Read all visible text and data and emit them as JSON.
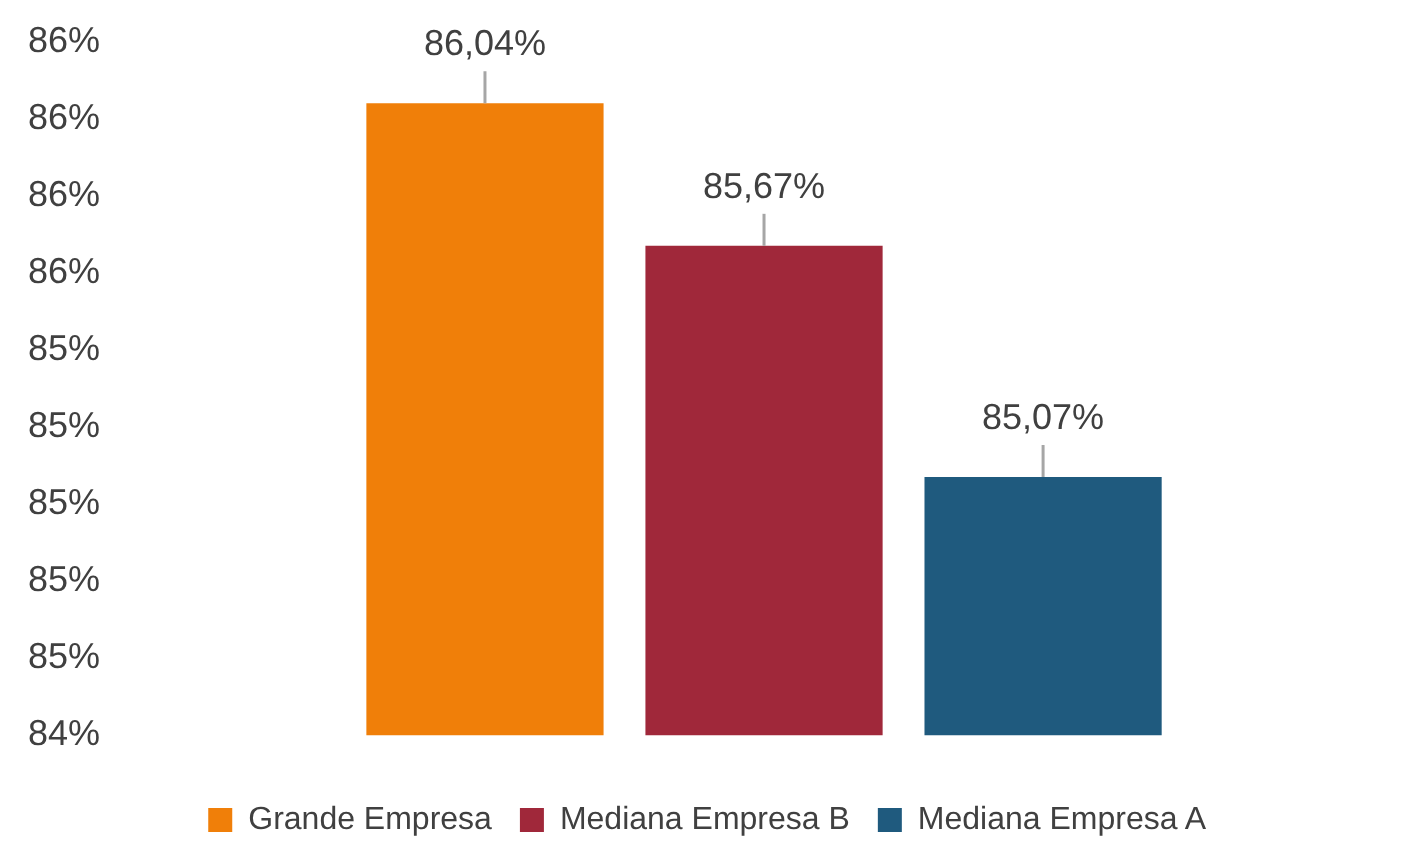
{
  "chart_data": {
    "type": "bar",
    "categories": [
      null
    ],
    "series": [
      {
        "name": "Grande Empresa",
        "color": "#f07f09",
        "values": [
          86.04
        ],
        "value_labels": [
          "86,04%"
        ]
      },
      {
        "name": "Mediana Empresa B",
        "color": "#a0283a",
        "values": [
          85.67
        ],
        "value_labels": [
          "85,67%"
        ]
      },
      {
        "name": "Mediana Empresa A",
        "color": "#1f5a7e",
        "values": [
          85.07
        ],
        "value_labels": [
          "85,07%"
        ]
      }
    ],
    "ylim": [
      84.4,
      86.2
    ],
    "yticks": [
      {
        "value": 84.4,
        "label": "84%"
      },
      {
        "value": 84.6,
        "label": "85%"
      },
      {
        "value": 84.8,
        "label": "85%"
      },
      {
        "value": 85.0,
        "label": "85%"
      },
      {
        "value": 85.2,
        "label": "85%"
      },
      {
        "value": 85.4,
        "label": "85%"
      },
      {
        "value": 85.6,
        "label": "86%"
      },
      {
        "value": 85.8,
        "label": "86%"
      },
      {
        "value": 86.0,
        "label": "86%"
      },
      {
        "value": 86.2,
        "label": "86%"
      }
    ],
    "grid": false,
    "legend": "bottom"
  }
}
